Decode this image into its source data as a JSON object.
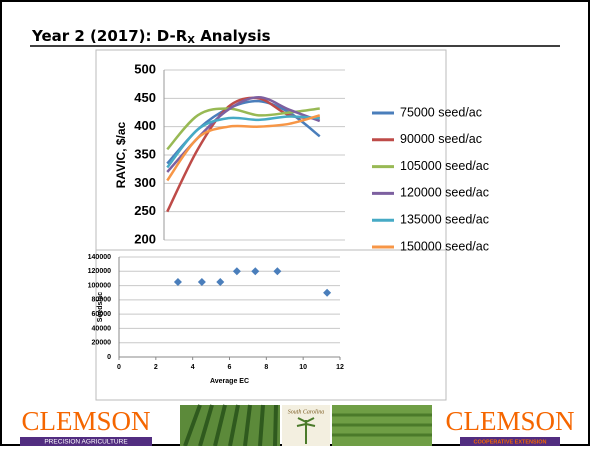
{
  "slide": {
    "title_main": "Year 2 (2017): D-R",
    "title_sub": "X",
    "title_end": " Analysis",
    "logo_left": "CLEMSON",
    "logo_left_sub": "PRECISION AGRICULTURE",
    "logo_mid": "South Carolina",
    "logo_right": "CLEMSON",
    "logo_right_sub": "COOPERATIVE EXTENSION"
  },
  "chart_data": [
    {
      "type": "line",
      "ylabel": "RAVIC, $/ac",
      "categories": [
        null,
        null,
        null,
        null,
        null,
        null
      ],
      "ylim": [
        200,
        500
      ],
      "yticks": [
        200,
        250,
        300,
        350,
        400,
        450,
        500
      ],
      "grid": true,
      "legend": "right",
      "series": [
        {
          "name": "75000 seed/ac",
          "color": "#4a7ebb",
          "values": [
            335,
            395,
            432,
            445,
            425,
            383
          ]
        },
        {
          "name": "90000 seed/ac",
          "color": "#be4b48",
          "values": [
            250,
            360,
            435,
            450,
            420,
            415
          ]
        },
        {
          "name": "105000 seed/ac",
          "color": "#98b954",
          "values": [
            360,
            420,
            432,
            420,
            425,
            432
          ]
        },
        {
          "name": "120000 seed/ac",
          "color": "#7d60a0",
          "values": [
            320,
            380,
            430,
            452,
            430,
            410
          ]
        },
        {
          "name": "135000 seed/ac",
          "color": "#46aac5",
          "values": [
            328,
            395,
            415,
            412,
            418,
            415
          ]
        },
        {
          "name": "150000 seed/ac",
          "color": "#f79646",
          "values": [
            305,
            380,
            400,
            400,
            405,
            420
          ]
        }
      ]
    },
    {
      "type": "scatter",
      "xlabel": "Average EC",
      "ylabel": "Seeds/ac",
      "color": "#4a7ebb",
      "x": [
        3.2,
        4.5,
        5.5,
        6.4,
        7.4,
        8.6,
        11.3
      ],
      "values": [
        105000,
        105000,
        105000,
        120000,
        120000,
        120000,
        90000
      ],
      "xlim": [
        0,
        12
      ],
      "xticks": [
        0,
        2,
        4,
        6,
        8,
        10,
        12
      ],
      "ylim": [
        0,
        140000
      ],
      "yticks": [
        0,
        20000,
        40000,
        60000,
        80000,
        100000,
        120000,
        140000
      ],
      "grid": true
    }
  ]
}
